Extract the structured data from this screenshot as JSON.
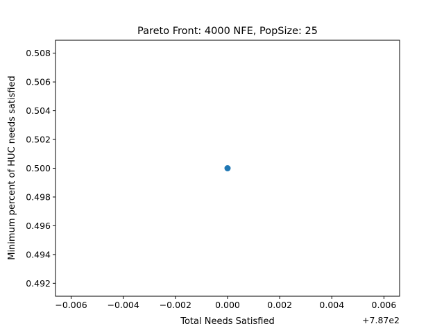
{
  "chart_data": {
    "type": "scatter",
    "title": "Pareto Front: 4000 NFE, PopSize: 25",
    "xlabel": "Total Needs Satisfied",
    "ylabel": "Minimum percent of HUC needs satisfied",
    "x_offset_label": "+7.87e2",
    "xlim": [
      -0.0066,
      0.0066
    ],
    "ylim": [
      0.4911,
      0.5089
    ],
    "x_ticks": [
      -0.006,
      -0.004,
      -0.002,
      0.0,
      0.002,
      0.004,
      0.006
    ],
    "x_tick_labels": [
      "−0.006",
      "−0.004",
      "−0.002",
      "0.000",
      "0.002",
      "0.004",
      "0.006"
    ],
    "y_ticks": [
      0.492,
      0.494,
      0.496,
      0.498,
      0.5,
      0.502,
      0.504,
      0.506,
      0.508
    ],
    "y_tick_labels": [
      "0.492",
      "0.494",
      "0.496",
      "0.498",
      "0.500",
      "0.502",
      "0.504",
      "0.506",
      "0.508"
    ],
    "grid": false,
    "series": [
      {
        "color": "#1f77b4",
        "points": [
          {
            "x": 0.0,
            "y": 0.5
          }
        ]
      }
    ]
  }
}
